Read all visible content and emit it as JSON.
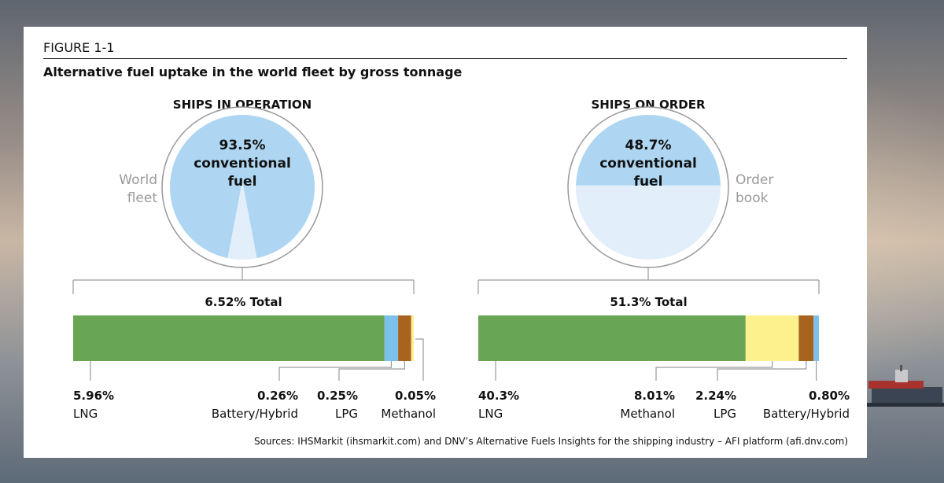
{
  "figure": {
    "label": "FIGURE 1-1",
    "title": "Alternative fuel uptake in the world fleet by gross tonnage",
    "sources": "Sources: IHSMarkit (ihsmarkit.com) and DNV’s Alternative Fuels Insights for the shipping industry – AFI platform (afi.dnv.com)"
  },
  "colors": {
    "pie_main": "#aed6f2",
    "pie_rest": "#e2eefa",
    "lng": "#68a655",
    "battery": "#7cc1ec",
    "lpg": "#a8641f",
    "methanol": "#fcf18c",
    "grey_text": "#9a9a9a"
  },
  "chart_data": [
    {
      "type": "pie",
      "title": "SHIPS IN OPERATION",
      "side_label": [
        "World",
        "fleet"
      ],
      "center_text": [
        "93.5%",
        "conventional",
        "fuel"
      ],
      "slices": [
        {
          "label": "conventional fuel",
          "value": 93.5
        },
        {
          "label": "alternative fuel",
          "value": 6.5
        }
      ]
    },
    {
      "type": "bar",
      "stacked": true,
      "total_label": "6.52%  Total",
      "segments": [
        {
          "value_label": "5.96%",
          "name": "LNG",
          "value": 5.96,
          "color_key": "lng"
        },
        {
          "value_label": "0.26%",
          "name": "Battery/Hybrid",
          "value": 0.26,
          "color_key": "battery"
        },
        {
          "value_label": "0.25%",
          "name": "LPG",
          "value": 0.25,
          "color_key": "lpg"
        },
        {
          "value_label": "0.05%",
          "name": "Methanol",
          "value": 0.05,
          "color_key": "methanol"
        }
      ]
    },
    {
      "type": "pie",
      "title": "SHIPS ON ORDER",
      "side_label": [
        "Order",
        "book"
      ],
      "center_text": [
        "48.7%",
        "conventional",
        "fuel"
      ],
      "slices": [
        {
          "label": "conventional fuel",
          "value": 48.7
        },
        {
          "label": "alternative fuel",
          "value": 51.3
        }
      ]
    },
    {
      "type": "bar",
      "stacked": true,
      "total_label": "51.3%  Total",
      "segments": [
        {
          "value_label": "40.3%",
          "name": "LNG",
          "value": 40.3,
          "color_key": "lng"
        },
        {
          "value_label": "8.01%",
          "name": "Methanol",
          "value": 8.01,
          "color_key": "methanol"
        },
        {
          "value_label": "2.24%",
          "name": "LPG",
          "value": 2.24,
          "color_key": "lpg"
        },
        {
          "value_label": "0.80%",
          "name": "Battery/Hybrid",
          "value": 0.8,
          "color_key": "battery"
        }
      ]
    }
  ]
}
